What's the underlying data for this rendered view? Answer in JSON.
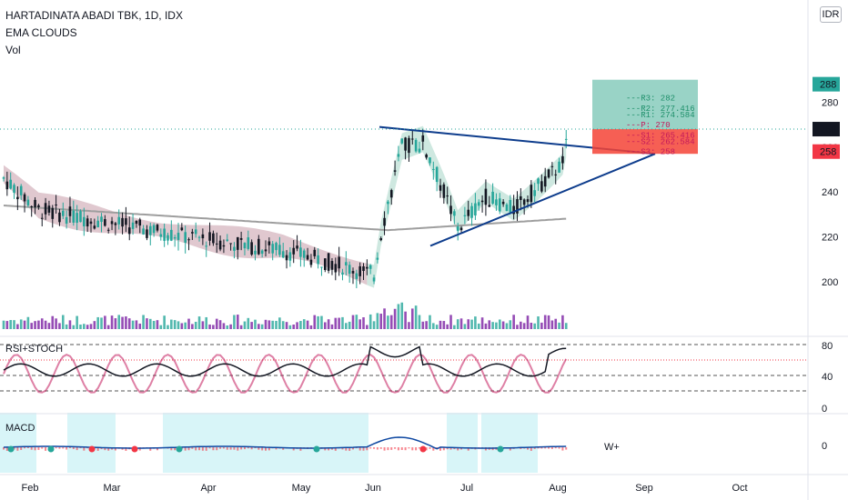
{
  "header": {
    "title": "HARTADINATA ABADI TBK, 1D, IDX",
    "indicator": "EMA CLOUDS",
    "volume": "Vol"
  },
  "currency": "IDR",
  "colors": {
    "up": "#26a69a",
    "down": "#131722",
    "cloud_bull": "#a5d6c7",
    "cloud_bear": "#c79aa8",
    "trendline": "#0d3c8c",
    "tp_zone": "#7fc8b8",
    "sl_zone": "#f44336"
  },
  "chart_data": {
    "type": "candlestick",
    "x_ticks": [
      "Feb",
      "Mar",
      "Apr",
      "May",
      "Jun",
      "Jul",
      "Aug",
      "Sep",
      "Oct"
    ],
    "price_axis": {
      "range": [
        188,
        293
      ],
      "ticks": [
        200,
        220,
        240,
        260,
        280
      ]
    },
    "price_badges": [
      {
        "value": "288",
        "color": "#26a69a"
      },
      {
        "value": "268",
        "color": "#131722"
      },
      {
        "value": "258",
        "color": "#f23645"
      }
    ],
    "pivot_levels": [
      {
        "label": "---R3: 282",
        "value": 282,
        "color": "#1e8f6a"
      },
      {
        "label": "---R2: 277.416",
        "value": 277.416,
        "color": "#1e8f6a"
      },
      {
        "label": "---R1: 274.584",
        "value": 274.584,
        "color": "#1e8f6a"
      },
      {
        "label": "---P: 270",
        "value": 270,
        "color": "#c2185b"
      },
      {
        "label": "---S1: 265.416",
        "value": 265.416,
        "color": "#c2185b"
      },
      {
        "label": "---S2: 262.584",
        "value": 262.584,
        "color": "#c2185b"
      },
      {
        "label": "---S3: 258",
        "value": 258,
        "color": "#c2185b"
      }
    ],
    "rsi": {
      "label": "RSI+STOCH",
      "ticks": [
        80,
        40,
        0
      ]
    },
    "macd": {
      "label": "MACD",
      "ticks": [
        0
      ],
      "annotation": "W+"
    }
  }
}
